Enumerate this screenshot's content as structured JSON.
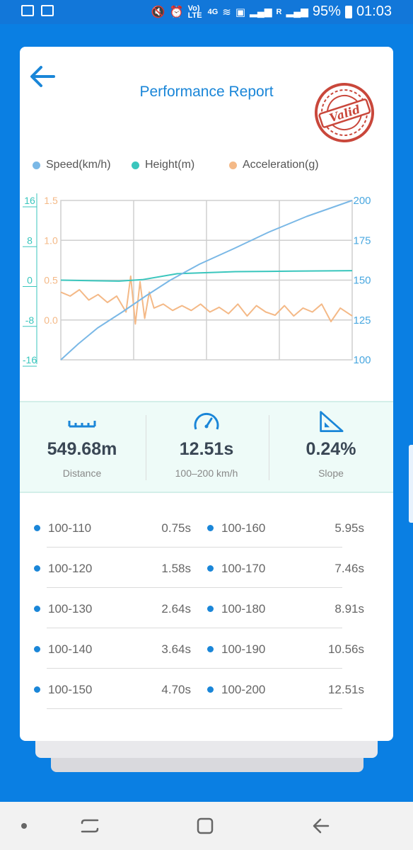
{
  "status_bar": {
    "battery": "95%",
    "time": "01:03",
    "network_small": "Vo) LTE",
    "network_4g": "4G",
    "signal_r": "R"
  },
  "header": {
    "title": "Performance Report",
    "stamp_text": "Valid"
  },
  "legend": [
    {
      "label": "Speed(km/h)",
      "color": "#7ab8e6"
    },
    {
      "label": "Height(m)",
      "color": "#3ac6bd"
    },
    {
      "label": "Acceleration(g)",
      "color": "#f4b987"
    }
  ],
  "chart_data": {
    "type": "line",
    "left_axis_height": {
      "label": "",
      "ticks": [
        "16",
        "8",
        "0",
        "-8",
        "-16"
      ],
      "range": [
        -16,
        16
      ],
      "color": "#3ac6bd"
    },
    "left_axis_accel": {
      "label": "",
      "ticks": [
        "1.5",
        "1.0",
        "0.5",
        "0.0"
      ],
      "range": [
        -0.5,
        1.5
      ],
      "color": "#f4b987"
    },
    "right_axis_speed": {
      "label": "",
      "ticks": [
        "200",
        "175",
        "150",
        "125",
        "100"
      ],
      "range": [
        100,
        200
      ],
      "color": "#4aa8e0"
    },
    "grid": true,
    "series": [
      {
        "name": "Speed(km/h)",
        "axis": "speed",
        "x": [
          0,
          0.75,
          1.58,
          2.64,
          3.64,
          4.7,
          5.95,
          7.46,
          8.91,
          10.56,
          12.51
        ],
        "values": [
          100,
          110,
          120,
          130,
          140,
          150,
          160,
          170,
          180,
          190,
          200
        ]
      },
      {
        "name": "Height(m)",
        "axis": "height",
        "x": [
          0,
          2.5,
          3.5,
          5,
          7.5,
          10,
          12.51
        ],
        "values": [
          0.0,
          -0.2,
          0.1,
          1.3,
          1.7,
          1.8,
          1.9
        ]
      },
      {
        "name": "Acceleration(g)",
        "axis": "accel",
        "x": [
          0,
          0.4,
          0.8,
          1.2,
          1.6,
          2.0,
          2.4,
          2.8,
          3.0,
          3.2,
          3.4,
          3.6,
          3.8,
          4.0,
          4.4,
          4.8,
          5.2,
          5.6,
          6.0,
          6.4,
          6.8,
          7.2,
          7.6,
          8.0,
          8.4,
          8.8,
          9.2,
          9.6,
          10.0,
          10.4,
          10.8,
          11.2,
          11.6,
          12.0,
          12.51
        ],
        "values": [
          0.35,
          0.3,
          0.38,
          0.25,
          0.32,
          0.22,
          0.3,
          0.1,
          0.55,
          -0.05,
          0.48,
          0.02,
          0.35,
          0.15,
          0.2,
          0.12,
          0.18,
          0.12,
          0.2,
          0.1,
          0.16,
          0.08,
          0.2,
          0.05,
          0.18,
          0.1,
          0.06,
          0.18,
          0.05,
          0.15,
          0.1,
          0.2,
          -0.02,
          0.15,
          0.05
        ]
      }
    ]
  },
  "stats": [
    {
      "value": "549.68m",
      "label": "Distance",
      "icon": "ruler-icon"
    },
    {
      "value": "12.51s",
      "label": "100–200 km/h",
      "icon": "speedometer-icon"
    },
    {
      "value": "0.24%",
      "label": "Slope",
      "icon": "slope-icon"
    }
  ],
  "splits_left": [
    {
      "range": "100-110",
      "time": "0.75s"
    },
    {
      "range": "100-120",
      "time": "1.58s"
    },
    {
      "range": "100-130",
      "time": "2.64s"
    },
    {
      "range": "100-140",
      "time": "3.64s"
    },
    {
      "range": "100-150",
      "time": "4.70s"
    }
  ],
  "splits_right": [
    {
      "range": "100-160",
      "time": "5.95s"
    },
    {
      "range": "100-170",
      "time": "7.46s"
    },
    {
      "range": "100-180",
      "time": "8.91s"
    },
    {
      "range": "100-190",
      "time": "10.56s"
    },
    {
      "range": "100-200",
      "time": "12.51s"
    }
  ]
}
